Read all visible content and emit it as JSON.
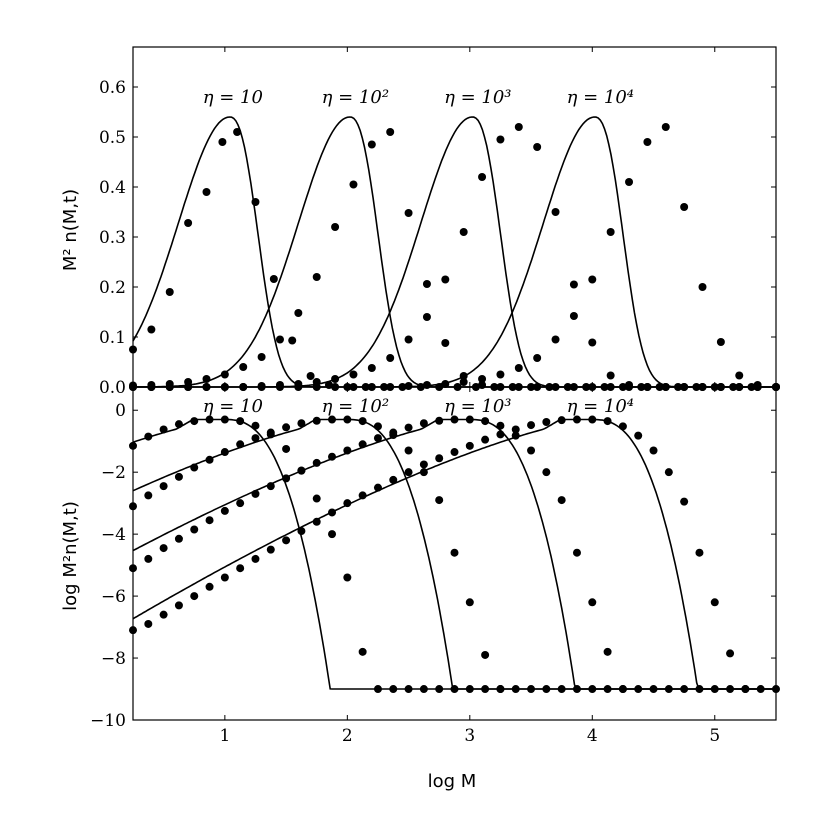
{
  "chart_data": [
    {
      "type": "line",
      "panel": "top",
      "ylabel": "M² n(M,t)",
      "xlim": [
        0.25,
        5.5
      ],
      "ylim": [
        0.0,
        0.68
      ],
      "yticks": [
        "0.0",
        "0.1",
        "0.2",
        "0.3",
        "0.4",
        "0.5",
        "0.6"
      ],
      "xticks": [],
      "grid": false,
      "annotations": [
        {
          "text": "η = 10",
          "x": 1.0
        },
        {
          "text": "η = 10²",
          "x": 2.0
        },
        {
          "text": "η = 10³",
          "x": 3.0
        },
        {
          "text": "η = 10⁴",
          "x": 4.0
        }
      ],
      "series": [
        {
          "style": "curve",
          "peak_x": 1.04,
          "peak_y": 0.54
        },
        {
          "style": "curve",
          "peak_x": 2.02,
          "peak_y": 0.54
        },
        {
          "style": "curve",
          "peak_x": 3.02,
          "peak_y": 0.54
        },
        {
          "style": "curve",
          "peak_x": 4.02,
          "peak_y": 0.54
        },
        {
          "style": "points",
          "x": [
            0.25,
            0.4,
            0.55,
            0.7,
            0.85,
            0.98,
            1.1,
            1.25,
            1.4,
            1.55,
            1.7,
            1.85,
            2.0,
            2.15,
            2.3,
            2.45,
            2.6,
            2.75,
            2.9,
            3.05,
            3.2,
            3.35,
            3.5,
            3.65,
            3.8,
            3.95,
            4.1,
            4.25,
            4.4,
            4.55,
            4.7,
            4.85,
            5.0,
            5.15,
            5.3,
            5.5
          ],
          "y": [
            0.075,
            0.115,
            0.19,
            0.328,
            0.39,
            0.49,
            0.51,
            0.37,
            0.216,
            0.093,
            0.022,
            0.004,
            0.0,
            0,
            0,
            0,
            0,
            0,
            0,
            0,
            0,
            0,
            0,
            0,
            0,
            0,
            0,
            0,
            0,
            0,
            0,
            0,
            0,
            0,
            0,
            0
          ]
        },
        {
          "style": "points",
          "x": [
            0.25,
            0.4,
            0.55,
            0.7,
            0.85,
            1.0,
            1.15,
            1.3,
            1.45,
            1.6,
            1.75,
            1.9,
            2.05,
            2.2,
            2.35,
            2.5,
            2.65,
            2.8,
            2.95,
            3.1,
            3.25,
            3.4,
            3.55,
            3.7,
            3.85,
            4.0,
            4.15,
            4.3,
            4.45,
            4.6,
            4.75,
            4.9,
            5.05,
            5.2,
            5.35,
            5.5
          ],
          "y": [
            0.003,
            0.004,
            0.006,
            0.01,
            0.016,
            0.025,
            0.04,
            0.06,
            0.095,
            0.148,
            0.22,
            0.32,
            0.405,
            0.485,
            0.51,
            0.348,
            0.206,
            0.088,
            0.022,
            0.004,
            0.0,
            0,
            0,
            0,
            0,
            0,
            0,
            0,
            0,
            0,
            0,
            0,
            0,
            0,
            0,
            0
          ]
        },
        {
          "style": "points",
          "x": [
            0.25,
            0.4,
            0.55,
            0.7,
            0.85,
            1.0,
            1.15,
            1.3,
            1.45,
            1.6,
            1.75,
            1.9,
            2.05,
            2.2,
            2.35,
            2.5,
            2.65,
            2.8,
            2.95,
            3.1,
            3.25,
            3.4,
            3.55,
            3.7,
            3.85,
            4.0,
            4.15,
            4.3,
            4.45,
            4.6,
            4.75,
            4.9,
            5.05,
            5.2,
            5.35,
            5.5
          ],
          "y": [
            0,
            0,
            0,
            0,
            0,
            0,
            0,
            0.002,
            0.004,
            0.006,
            0.01,
            0.016,
            0.025,
            0.038,
            0.058,
            0.095,
            0.14,
            0.215,
            0.31,
            0.42,
            0.495,
            0.52,
            0.48,
            0.35,
            0.205,
            0.089,
            0.023,
            0.004,
            0,
            0,
            0,
            0,
            0,
            0,
            0,
            0
          ]
        },
        {
          "style": "points",
          "x": [
            0.25,
            0.4,
            0.55,
            0.7,
            0.85,
            1.0,
            1.15,
            1.3,
            1.45,
            1.6,
            1.75,
            1.9,
            2.05,
            2.2,
            2.35,
            2.5,
            2.65,
            2.8,
            2.95,
            3.1,
            3.25,
            3.4,
            3.55,
            3.7,
            3.85,
            4.0,
            4.15,
            4.3,
            4.45,
            4.6,
            4.75,
            4.9,
            5.05,
            5.2,
            5.35,
            5.5
          ],
          "y": [
            0,
            0,
            0,
            0,
            0,
            0,
            0,
            0,
            0,
            0,
            0,
            0,
            0,
            0,
            0,
            0.002,
            0.004,
            0.006,
            0.01,
            0.016,
            0.025,
            0.038,
            0.058,
            0.095,
            0.142,
            0.215,
            0.31,
            0.41,
            0.49,
            0.52,
            0.36,
            0.2,
            0.09,
            0.023,
            0.004,
            0
          ]
        }
      ]
    },
    {
      "type": "line",
      "panel": "bottom",
      "ylabel": "log M²n(M,t)",
      "xlabel": "log M",
      "xlim": [
        0.25,
        5.5
      ],
      "ylim": [
        -10,
        0.75
      ],
      "yticks": [
        "0",
        "−2",
        "−4",
        "−6",
        "−8",
        "−10"
      ],
      "xticks": [
        "1",
        "2",
        "3",
        "4",
        "5"
      ],
      "grid": false,
      "annotations": [
        {
          "text": "η = 10",
          "x": 1.0
        },
        {
          "text": "η = 10²",
          "x": 2.0
        },
        {
          "text": "η = 10³",
          "x": 3.0
        },
        {
          "text": "η = 10⁴",
          "x": 4.0
        }
      ],
      "series": [
        {
          "style": "curve",
          "peak_x": 1.0,
          "peak_y": -0.3,
          "floor": -9.0
        },
        {
          "style": "curve",
          "peak_x": 2.0,
          "peak_y": -0.3,
          "floor": -9.0
        },
        {
          "style": "curve",
          "peak_x": 3.0,
          "peak_y": -0.3,
          "floor": -9.0
        },
        {
          "style": "curve",
          "peak_x": 4.0,
          "peak_y": -0.3,
          "floor": -9.0
        },
        {
          "style": "points",
          "x": [
            0.25,
            0.375,
            0.5,
            0.625,
            0.75,
            0.875,
            1.0,
            1.125,
            1.25,
            1.375,
            1.5,
            1.625,
            1.75,
            1.875,
            2.0,
            2.125,
            2.25,
            2.375,
            2.5,
            2.625,
            2.75,
            2.875,
            3.0,
            3.125,
            3.25,
            3.375,
            3.5,
            3.625,
            3.75,
            3.875,
            4.0,
            4.125,
            4.25,
            4.375,
            4.5,
            4.625,
            4.75,
            4.875,
            5.0,
            5.125,
            5.25,
            5.375,
            5.5
          ],
          "y": [
            -1.15,
            -0.85,
            -0.62,
            -0.45,
            -0.35,
            -0.3,
            -0.3,
            -0.35,
            -0.5,
            -0.78,
            -1.25,
            -1.95,
            -2.85,
            -4.0,
            -5.4,
            -7.8,
            -9.0,
            -9.0,
            -9.0,
            -9.0,
            -9.0,
            -9.0,
            -9.0,
            -9.0,
            -9.0,
            -9.0,
            -9.0,
            -9.0,
            -9.0,
            -9.0,
            -9.0,
            -9.0,
            -9.0,
            -9.0,
            -9.0,
            -9.0,
            -9.0,
            -9.0,
            -9.0,
            -9.0,
            -9.0,
            -9.0,
            -9.0
          ]
        },
        {
          "style": "points",
          "x": [
            0.25,
            0.375,
            0.5,
            0.625,
            0.75,
            0.875,
            1.0,
            1.125,
            1.25,
            1.375,
            1.5,
            1.625,
            1.75,
            1.875,
            2.0,
            2.125,
            2.25,
            2.375,
            2.5,
            2.625,
            2.75,
            2.875,
            3.0,
            3.125,
            3.25
          ],
          "y": [
            -3.1,
            -2.75,
            -2.45,
            -2.15,
            -1.85,
            -1.6,
            -1.35,
            -1.1,
            -0.9,
            -0.72,
            -0.55,
            -0.42,
            -0.34,
            -0.3,
            -0.3,
            -0.35,
            -0.52,
            -0.8,
            -1.3,
            -2.0,
            -2.9,
            -4.6,
            -6.2,
            -7.9,
            -9.0
          ]
        },
        {
          "style": "points",
          "x": [
            0.25,
            0.375,
            0.5,
            0.625,
            0.75,
            0.875,
            1.0,
            1.125,
            1.25,
            1.375,
            1.5,
            1.625,
            1.75,
            1.875,
            2.0,
            2.125,
            2.25,
            2.375,
            2.5,
            2.625,
            2.75,
            2.875,
            3.0,
            3.125,
            3.25,
            3.375,
            3.5,
            3.625,
            3.75,
            3.875,
            4.0,
            4.125,
            4.25
          ],
          "y": [
            -5.1,
            -4.8,
            -4.45,
            -4.15,
            -3.85,
            -3.55,
            -3.25,
            -3.0,
            -2.7,
            -2.45,
            -2.2,
            -1.95,
            -1.7,
            -1.5,
            -1.3,
            -1.1,
            -0.9,
            -0.72,
            -0.56,
            -0.42,
            -0.34,
            -0.3,
            -0.3,
            -0.35,
            -0.5,
            -0.82,
            -1.3,
            -2.0,
            -2.9,
            -4.6,
            -6.2,
            -7.8,
            -9.0
          ]
        },
        {
          "style": "points",
          "x": [
            0.25,
            0.375,
            0.5,
            0.625,
            0.75,
            0.875,
            1.0,
            1.125,
            1.25,
            1.375,
            1.5,
            1.625,
            1.75,
            1.875,
            2.0,
            2.125,
            2.25,
            2.375,
            2.5,
            2.625,
            2.75,
            2.875,
            3.0,
            3.125,
            3.25,
            3.375,
            3.5,
            3.625,
            3.75,
            3.875,
            4.0,
            4.125,
            4.25,
            4.375,
            4.5,
            4.625,
            4.75,
            4.875,
            5.0,
            5.125,
            5.25
          ],
          "y": [
            -7.1,
            -6.9,
            -6.6,
            -6.3,
            -6.0,
            -5.7,
            -5.4,
            -5.1,
            -4.8,
            -4.5,
            -4.2,
            -3.9,
            -3.6,
            -3.3,
            -3.0,
            -2.75,
            -2.5,
            -2.25,
            -2.0,
            -1.75,
            -1.55,
            -1.35,
            -1.15,
            -0.95,
            -0.78,
            -0.62,
            -0.48,
            -0.38,
            -0.32,
            -0.3,
            -0.3,
            -0.35,
            -0.52,
            -0.82,
            -1.3,
            -2.0,
            -2.95,
            -4.6,
            -6.2,
            -7.85,
            -9.0
          ]
        }
      ]
    }
  ]
}
